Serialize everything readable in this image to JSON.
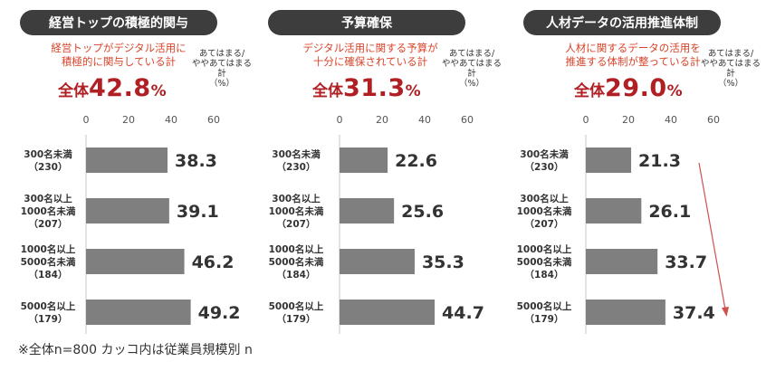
{
  "chart_data": [
    {
      "type": "bar",
      "orientation": "horizontal",
      "title": "経営トップの積極的関与",
      "subtitle_lines": [
        "経営トップがデジタル活用に",
        "積極的に関与している計"
      ],
      "total_label": "全体",
      "total_value": "42.8",
      "total_unit": "%",
      "unit_lines": [
        "あてはまる/",
        "ややあてはまる",
        "計",
        "（%）"
      ],
      "categories": [
        {
          "lines": [
            "300名未満",
            "（230）"
          ]
        },
        {
          "lines": [
            "300名以上",
            "1000名未満",
            "（207）"
          ]
        },
        {
          "lines": [
            "1000名以上",
            "5000名未満",
            "（184）"
          ]
        },
        {
          "lines": [
            "5000名以上",
            "（179）"
          ]
        }
      ],
      "values": [
        38.3,
        39.1,
        46.2,
        49.2
      ],
      "xlim": [
        0,
        60
      ],
      "ticks": [
        0,
        20,
        40,
        60
      ],
      "bar_color": "#7f7f7f",
      "trend_arrow": false
    },
    {
      "type": "bar",
      "orientation": "horizontal",
      "title": "予算確保",
      "subtitle_lines": [
        "デジタル活用に関する予算が",
        "十分に確保されている計"
      ],
      "total_label": "全体",
      "total_value": "31.3",
      "total_unit": "%",
      "unit_lines": [
        "あてはまる/",
        "ややあてはまる",
        "計",
        "（%）"
      ],
      "categories": [
        {
          "lines": [
            "300名未満",
            "（230）"
          ]
        },
        {
          "lines": [
            "300名以上",
            "1000名未満",
            "（207）"
          ]
        },
        {
          "lines": [
            "1000名以上",
            "5000名未満",
            "（184）"
          ]
        },
        {
          "lines": [
            "5000名以上",
            "（179）"
          ]
        }
      ],
      "values": [
        22.6,
        25.6,
        35.3,
        44.7
      ],
      "xlim": [
        0,
        60
      ],
      "ticks": [
        0,
        20,
        40,
        60
      ],
      "bar_color": "#7f7f7f",
      "trend_arrow": false
    },
    {
      "type": "bar",
      "orientation": "horizontal",
      "title": "人材データの活用推進体制",
      "subtitle_lines": [
        "人材に関するデータの活用を",
        "推進する体制が整っている計"
      ],
      "total_label": "全体",
      "total_value": "29.0",
      "total_unit": "%",
      "unit_lines": [
        "あてはまる/",
        "ややあてはまる",
        "計",
        "（%）"
      ],
      "categories": [
        {
          "lines": [
            "300名未満",
            "（230）"
          ]
        },
        {
          "lines": [
            "300名以上",
            "1000名未満",
            "（207）"
          ]
        },
        {
          "lines": [
            "1000名以上",
            "5000名未満",
            "（184）"
          ]
        },
        {
          "lines": [
            "5000名以上",
            "（179）"
          ]
        }
      ],
      "values": [
        21.3,
        26.1,
        33.7,
        37.4
      ],
      "xlim": [
        0,
        60
      ],
      "ticks": [
        0,
        20,
        40,
        60
      ],
      "bar_color": "#7f7f7f",
      "trend_arrow": true,
      "arrow_color": "#d05050"
    }
  ],
  "footnote": "※全体n=800 カッコ内は従業員規模別 n",
  "colors": {
    "pill_background": "#3d3d3d",
    "subtitle": "#d8442a",
    "total": "#b01f24",
    "axis": "#d9d9d9"
  }
}
